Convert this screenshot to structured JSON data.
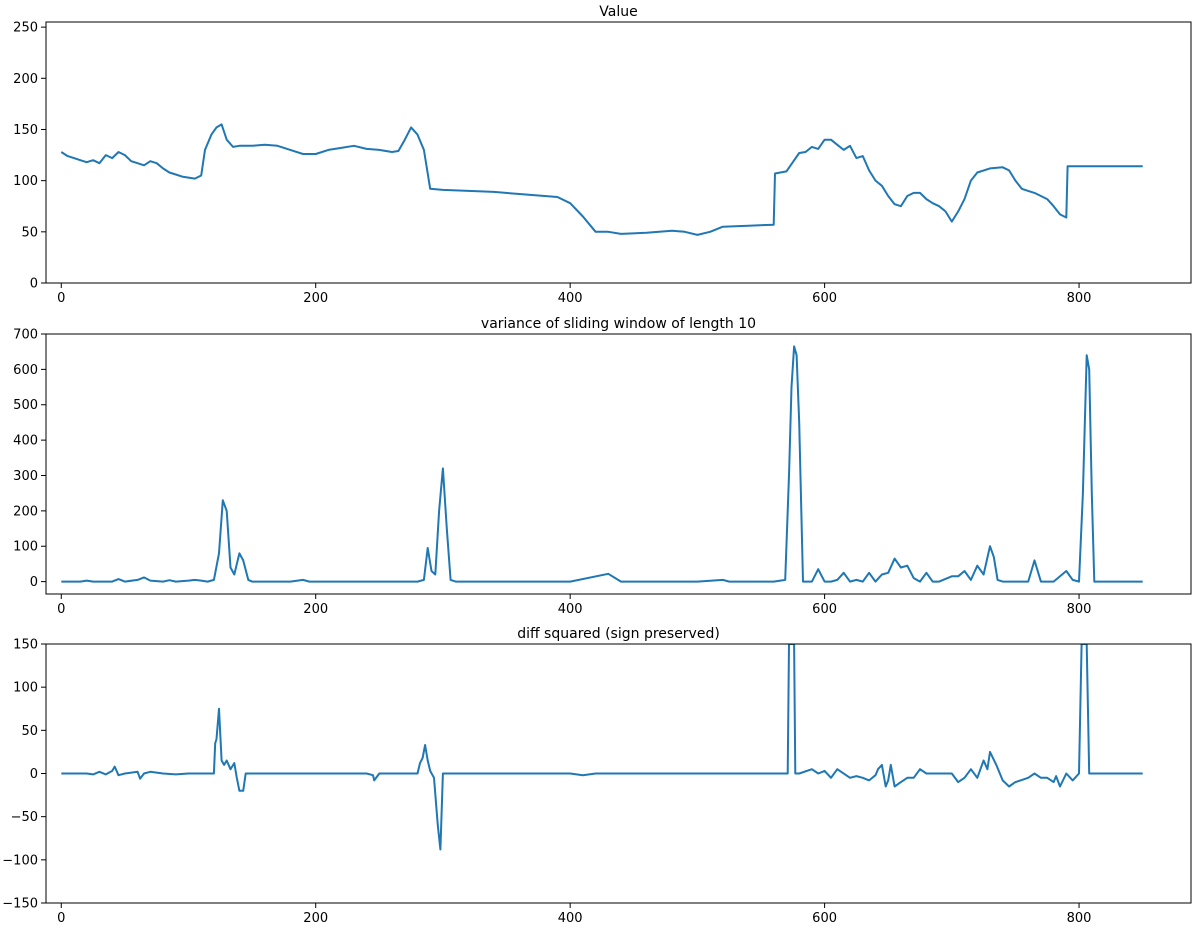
{
  "figure": {
    "line_color": "#1f77b4"
  },
  "chart_data": [
    {
      "type": "line",
      "title": "Value",
      "xlabel": "",
      "ylabel": "",
      "xlim": [
        -12,
        888
      ],
      "ylim": [
        0,
        255
      ],
      "xticks": [
        0,
        200,
        400,
        600,
        800
      ],
      "yticks": [
        0,
        50,
        100,
        150,
        200,
        250
      ],
      "x": [
        0,
        5,
        10,
        15,
        20,
        25,
        30,
        35,
        40,
        45,
        50,
        55,
        60,
        65,
        70,
        75,
        80,
        85,
        90,
        95,
        100,
        105,
        110,
        113,
        118,
        122,
        126,
        130,
        135,
        140,
        150,
        160,
        170,
        180,
        190,
        200,
        210,
        220,
        230,
        240,
        250,
        260,
        265,
        270,
        275,
        280,
        285,
        290,
        300,
        320,
        340,
        360,
        380,
        390,
        400,
        410,
        420,
        430,
        440,
        460,
        480,
        490,
        500,
        510,
        520,
        540,
        560,
        561,
        570,
        575,
        580,
        585,
        590,
        595,
        600,
        605,
        610,
        615,
        620,
        625,
        630,
        635,
        640,
        645,
        650,
        655,
        660,
        665,
        670,
        675,
        680,
        685,
        690,
        695,
        700,
        705,
        710,
        715,
        720,
        730,
        740,
        745,
        750,
        755,
        760,
        765,
        770,
        775,
        780,
        785,
        790,
        791,
        800,
        820,
        840,
        850
      ],
      "series": [
        {
          "name": "Value",
          "values": [
            128,
            124,
            122,
            120,
            118,
            120,
            117,
            125,
            122,
            128,
            125,
            119,
            117,
            115,
            119,
            117,
            112,
            108,
            106,
            104,
            103,
            102,
            105,
            130,
            145,
            152,
            155,
            140,
            133,
            134,
            134,
            135,
            134,
            130,
            126,
            126,
            130,
            132,
            134,
            131,
            130,
            128,
            129,
            140,
            152,
            145,
            130,
            92,
            91,
            90,
            89,
            87,
            85,
            84,
            78,
            65,
            50,
            50,
            48,
            49,
            51,
            50,
            47,
            50,
            55,
            56,
            57,
            107,
            109,
            118,
            127,
            128,
            133,
            131,
            140,
            140,
            135,
            130,
            134,
            122,
            124,
            110,
            100,
            95,
            85,
            77,
            75,
            85,
            88,
            88,
            82,
            78,
            75,
            70,
            60,
            70,
            82,
            100,
            108,
            112,
            113,
            110,
            100,
            92,
            90,
            88,
            85,
            82,
            75,
            67,
            64,
            114,
            114,
            114,
            114,
            114
          ]
        }
      ]
    },
    {
      "type": "line",
      "title": "variance of sliding window of length 10",
      "xlabel": "",
      "ylabel": "",
      "xlim": [
        -12,
        888
      ],
      "ylim": [
        -35,
        700
      ],
      "xticks": [
        0,
        200,
        400,
        600,
        800
      ],
      "yticks": [
        0,
        100,
        200,
        300,
        400,
        500,
        600,
        700
      ],
      "x": [
        0,
        15,
        20,
        25,
        40,
        45,
        50,
        60,
        65,
        70,
        80,
        85,
        90,
        100,
        105,
        110,
        115,
        120,
        124,
        127,
        130,
        133,
        136,
        140,
        143,
        147,
        150,
        180,
        190,
        195,
        200,
        250,
        280,
        285,
        288,
        291,
        294,
        297,
        300,
        303,
        306,
        310,
        400,
        430,
        440,
        450,
        500,
        520,
        525,
        530,
        560,
        569,
        572,
        574,
        576,
        578,
        580,
        583,
        590,
        595,
        600,
        605,
        610,
        615,
        620,
        625,
        630,
        635,
        640,
        645,
        650,
        655,
        660,
        665,
        670,
        675,
        680,
        685,
        690,
        700,
        705,
        710,
        715,
        720,
        725,
        730,
        733,
        736,
        740,
        760,
        765,
        770,
        780,
        790,
        795,
        800,
        803,
        806,
        808,
        810,
        812,
        815,
        830,
        850
      ],
      "series": [
        {
          "name": "variance",
          "values": [
            0,
            0,
            3,
            0,
            0,
            7,
            0,
            5,
            12,
            3,
            0,
            4,
            0,
            3,
            5,
            3,
            0,
            5,
            80,
            230,
            200,
            40,
            20,
            80,
            60,
            5,
            0,
            0,
            5,
            0,
            0,
            0,
            0,
            5,
            95,
            30,
            20,
            200,
            320,
            150,
            5,
            0,
            0,
            22,
            0,
            0,
            0,
            5,
            0,
            0,
            0,
            5,
            300,
            550,
            665,
            640,
            450,
            0,
            0,
            35,
            0,
            0,
            5,
            25,
            0,
            5,
            0,
            25,
            0,
            20,
            25,
            65,
            40,
            45,
            10,
            0,
            25,
            0,
            0,
            15,
            15,
            30,
            5,
            45,
            20,
            100,
            70,
            5,
            0,
            0,
            60,
            0,
            0,
            30,
            5,
            0,
            250,
            640,
            600,
            250,
            0,
            0,
            0,
            0
          ]
        }
      ]
    },
    {
      "type": "line",
      "title": "diff squared (sign preserved)",
      "xlabel": "",
      "ylabel": "",
      "xlim": [
        -12,
        888
      ],
      "ylim": [
        -150,
        150
      ],
      "xticks": [
        0,
        200,
        400,
        600,
        800
      ],
      "yticks": [
        -150,
        -100,
        -50,
        0,
        50,
        100,
        150
      ],
      "x": [
        0,
        20,
        25,
        30,
        35,
        40,
        42,
        45,
        50,
        60,
        62,
        65,
        70,
        80,
        90,
        100,
        110,
        115,
        120,
        121,
        122,
        124,
        126,
        128,
        130,
        133,
        136,
        138,
        140,
        143,
        145,
        150,
        200,
        220,
        230,
        240,
        245,
        246,
        250,
        270,
        280,
        282,
        284,
        286,
        288,
        290,
        293,
        296,
        298,
        300,
        350,
        400,
        410,
        420,
        430,
        450,
        500,
        550,
        571,
        572,
        574,
        576,
        577,
        580,
        590,
        595,
        600,
        605,
        610,
        620,
        625,
        630,
        635,
        640,
        642,
        645,
        648,
        650,
        652,
        655,
        660,
        665,
        670,
        675,
        680,
        690,
        700,
        705,
        710,
        715,
        720,
        725,
        728,
        730,
        735,
        740,
        745,
        750,
        760,
        765,
        770,
        775,
        780,
        782,
        785,
        790,
        795,
        800,
        802,
        804,
        806,
        808,
        810,
        830,
        850
      ],
      "series": [
        {
          "name": "diff squared",
          "values": [
            0,
            0,
            -1,
            2,
            -1,
            3,
            8,
            -2,
            0,
            2,
            -6,
            0,
            2,
            0,
            -1,
            0,
            0,
            0,
            0,
            35,
            40,
            75,
            15,
            10,
            15,
            5,
            12,
            -5,
            -20,
            -20,
            0,
            0,
            0,
            0,
            0,
            0,
            -2,
            -8,
            0,
            0,
            0,
            12,
            18,
            33,
            15,
            3,
            -5,
            -60,
            -88,
            0,
            0,
            0,
            -2,
            0,
            0,
            0,
            0,
            0,
            0,
            150,
            150,
            150,
            0,
            0,
            5,
            0,
            3,
            -5,
            5,
            -5,
            -3,
            -5,
            -8,
            -2,
            5,
            10,
            -15,
            -8,
            10,
            -15,
            -10,
            -5,
            -5,
            5,
            0,
            0,
            0,
            -10,
            -5,
            5,
            -5,
            15,
            5,
            25,
            10,
            -8,
            -15,
            -10,
            -5,
            0,
            -5,
            -5,
            -10,
            -3,
            -15,
            0,
            -8,
            0,
            150,
            150,
            150,
            0,
            0,
            0,
            0
          ]
        }
      ]
    }
  ]
}
